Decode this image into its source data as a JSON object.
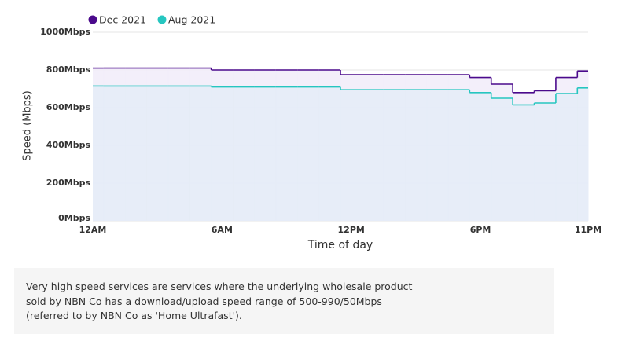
{
  "chart_data": {
    "type": "step-area",
    "x_label": "Time of day",
    "y_label": "Speed (Mbps)",
    "x": [
      0,
      1,
      2,
      3,
      4,
      5,
      6,
      7,
      8,
      9,
      10,
      11,
      12,
      13,
      14,
      15,
      16,
      17,
      18,
      19,
      20,
      21,
      22,
      23
    ],
    "xlim": [
      0,
      23
    ],
    "xticks": [
      {
        "value": 0,
        "label": "12AM"
      },
      {
        "value": 6,
        "label": "6AM"
      },
      {
        "value": 12,
        "label": "12PM"
      },
      {
        "value": 18,
        "label": "6PM"
      },
      {
        "value": 23,
        "label": "11PM"
      }
    ],
    "ylim": [
      0,
      1000
    ],
    "yticks": [
      {
        "value": 0,
        "label": "0Mbps"
      },
      {
        "value": 200,
        "label": "200Mbps"
      },
      {
        "value": 400,
        "label": "400Mbps"
      },
      {
        "value": 600,
        "label": "600Mbps"
      },
      {
        "value": 800,
        "label": "800Mbps"
      },
      {
        "value": 1000,
        "label": "1000Mbps"
      }
    ],
    "grid": true,
    "legend": "top-left",
    "series": [
      {
        "name": "Dec 2021",
        "color": "#4b0a8c",
        "fill": "#f1ecf9",
        "values": [
          810,
          810,
          810,
          810,
          810,
          810,
          800,
          800,
          800,
          800,
          800,
          800,
          775,
          775,
          775,
          775,
          775,
          775,
          760,
          725,
          680,
          690,
          760,
          795
        ]
      },
      {
        "name": "Aug 2021",
        "color": "#26c6c0",
        "fill": "#e4ecf7",
        "values": [
          715,
          715,
          715,
          715,
          715,
          715,
          710,
          710,
          710,
          710,
          710,
          710,
          695,
          695,
          695,
          695,
          695,
          695,
          680,
          650,
          615,
          625,
          675,
          705
        ]
      }
    ]
  },
  "note": {
    "lines": [
      "Very high speed services are services where the underlying wholesale product",
      "sold by NBN Co has a download/upload speed range of 500-990/50Mbps",
      "(referred to by NBN Co as 'Home Ultrafast')."
    ]
  }
}
